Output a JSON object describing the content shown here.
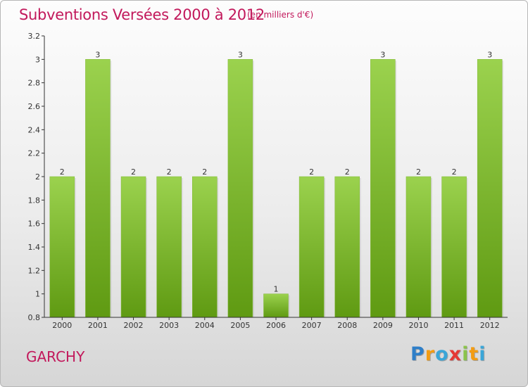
{
  "header": {
    "title": "Subventions Versées 2000 à 2012",
    "units": "(en milliers d'€)"
  },
  "footer": {
    "commune": "GARCHY",
    "logo": {
      "letters": [
        "P",
        "r",
        "o",
        "x",
        "i",
        "t",
        "i"
      ],
      "colors": [
        "#2f7fc8",
        "#f39c12",
        "#3aa6d8",
        "#e53935",
        "#8bc34a",
        "#f39c12",
        "#3aa6d8"
      ]
    }
  },
  "colors": {
    "bar_light": "#9bd24e",
    "bar_dark": "#5f9a12",
    "axis": "#333333",
    "text": "#333333",
    "title": "#c2185b"
  },
  "chart_data": {
    "type": "bar",
    "categories": [
      "2000",
      "2001",
      "2002",
      "2003",
      "2004",
      "2005",
      "2006",
      "2007",
      "2008",
      "2009",
      "2010",
      "2011",
      "2012"
    ],
    "values": [
      2,
      3,
      2,
      2,
      2,
      3,
      1,
      2,
      2,
      3,
      2,
      2,
      3
    ],
    "data_labels": [
      "2",
      "3",
      "2",
      "2",
      "2",
      "3",
      "1",
      "2",
      "2",
      "3",
      "2",
      "2",
      "3"
    ],
    "ylim": [
      0.8,
      3.2
    ],
    "yticks": [
      0.8,
      1,
      1.2,
      1.4,
      1.6,
      1.8,
      2,
      2.2,
      2.4,
      2.6,
      2.8,
      3,
      3.2
    ],
    "ytick_labels": [
      "0.8",
      "1",
      "1.2",
      "1.4",
      "1.6",
      "1.8",
      "2",
      "2.2",
      "2.4",
      "2.6",
      "2.8",
      "3",
      "3.2"
    ],
    "grid": false,
    "xlabel": "",
    "ylabel": ""
  }
}
